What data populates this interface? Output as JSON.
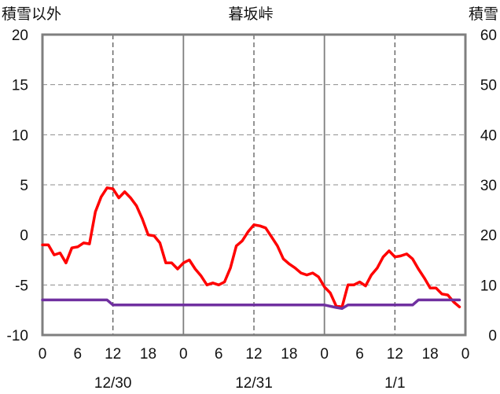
{
  "chart_data": {
    "type": "line",
    "title": "暮坂峠",
    "left_axis_label": "積雪以外",
    "right_axis_label": "積雪",
    "left_ylim": [
      -10,
      20
    ],
    "left_yticks": [
      "20",
      "15",
      "10",
      "5",
      "0",
      "-5",
      "-10"
    ],
    "right_ylim": [
      0,
      60
    ],
    "right_yticks": [
      "60",
      "50",
      "40",
      "30",
      "20",
      "10",
      "0"
    ],
    "x_range_hours": [
      0,
      72
    ],
    "x_tick_labels": [
      "0",
      "6",
      "12",
      "18",
      "0",
      "6",
      "12",
      "18",
      "0",
      "6",
      "12",
      "18",
      "0"
    ],
    "date_labels": [
      {
        "label": "12/30",
        "hour": 12
      },
      {
        "label": "12/31",
        "hour": 36
      },
      {
        "label": "1/1",
        "hour": 60
      }
    ],
    "grid": {
      "dashed_at_hours": [
        12,
        36,
        60
      ],
      "solid_at_hours": [
        24,
        48
      ],
      "horizontal_every": 5
    },
    "series": [
      {
        "axis": "left",
        "color": "#ff0000",
        "x": [
          0,
          1,
          2,
          3,
          4,
          5,
          6,
          7,
          8,
          9,
          10,
          11,
          12,
          13,
          14,
          15,
          16,
          17,
          18,
          19,
          20,
          21,
          22,
          23,
          24,
          25,
          26,
          27,
          28,
          29,
          30,
          31,
          32,
          33,
          34,
          35,
          36,
          37,
          38,
          39,
          40,
          41,
          42,
          43,
          44,
          45,
          46,
          47,
          48,
          49,
          50,
          51,
          52,
          53,
          54,
          55,
          56,
          57,
          58,
          59,
          60,
          61,
          62,
          63,
          64,
          65,
          66,
          67,
          68,
          69,
          70,
          71
        ],
        "values": [
          -1.0,
          -1.0,
          -2.0,
          -1.8,
          -2.8,
          -1.3,
          -1.2,
          -0.8,
          -0.9,
          2.3,
          3.8,
          4.7,
          4.6,
          3.7,
          4.3,
          3.7,
          2.9,
          1.6,
          0.0,
          -0.1,
          -0.8,
          -2.8,
          -2.8,
          -3.4,
          -2.8,
          -2.5,
          -3.4,
          -4.1,
          -5.0,
          -4.8,
          -5.0,
          -4.7,
          -3.3,
          -1.1,
          -0.6,
          0.3,
          1.0,
          0.9,
          0.7,
          -0.2,
          -1.1,
          -2.4,
          -2.9,
          -3.3,
          -3.8,
          -4.0,
          -3.8,
          -4.2,
          -5.2,
          -5.8,
          -7.1,
          -7.2,
          -5.0,
          -5.0,
          -4.7,
          -5.1,
          -4.0,
          -3.3,
          -2.2,
          -1.6,
          -2.2,
          -2.1,
          -1.9,
          -2.4,
          -3.4,
          -4.3,
          -5.3,
          -5.3,
          -5.9,
          -6.0,
          -6.7,
          -7.2
        ]
      },
      {
        "axis": "right",
        "color": "#7030a0",
        "x": [
          0,
          11,
          12,
          48,
          50,
          51,
          52,
          62,
          63,
          64,
          71
        ],
        "values": [
          7,
          7,
          6,
          6,
          5.5,
          5.3,
          6,
          6,
          6,
          7,
          7
        ]
      }
    ]
  }
}
